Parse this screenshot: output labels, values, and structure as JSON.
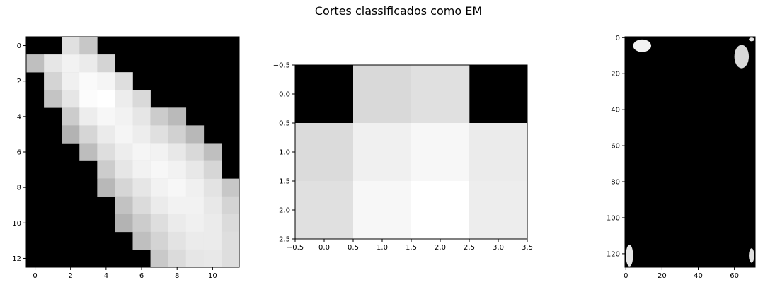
{
  "figure": {
    "title": "Cortes classificados como EM"
  },
  "chart_data": [
    {
      "type": "heatmap",
      "colormap": "gray",
      "shape": [
        13,
        12
      ],
      "xlim": [
        -0.5,
        11.5
      ],
      "ylim": [
        12.5,
        -0.5
      ],
      "xticks": [
        0,
        2,
        4,
        6,
        8,
        10
      ],
      "yticks": [
        0,
        2,
        4,
        6,
        8,
        10,
        12
      ],
      "values": [
        [
          0,
          0,
          0.88,
          0.78,
          0,
          0,
          0,
          0,
          0,
          0,
          0,
          0
        ],
        [
          0.75,
          0.9,
          0.95,
          0.92,
          0.83,
          0,
          0,
          0,
          0,
          0,
          0,
          0
        ],
        [
          0,
          0.83,
          0.94,
          0.98,
          0.96,
          0.87,
          0,
          0,
          0,
          0,
          0,
          0
        ],
        [
          0,
          0.77,
          0.9,
          0.99,
          1.0,
          0.93,
          0.85,
          0,
          0,
          0,
          0,
          0
        ],
        [
          0,
          0,
          0.8,
          0.93,
          0.97,
          0.95,
          0.9,
          0.8,
          0.73,
          0,
          0,
          0
        ],
        [
          0,
          0,
          0.7,
          0.84,
          0.92,
          0.96,
          0.93,
          0.88,
          0.82,
          0.72,
          0,
          0
        ],
        [
          0,
          0,
          0,
          0.74,
          0.87,
          0.93,
          0.96,
          0.95,
          0.91,
          0.85,
          0.75,
          0
        ],
        [
          0,
          0,
          0,
          0,
          0.8,
          0.9,
          0.95,
          0.97,
          0.95,
          0.91,
          0.84,
          0
        ],
        [
          0,
          0,
          0,
          0,
          0.72,
          0.84,
          0.9,
          0.95,
          0.97,
          0.94,
          0.89,
          0.78
        ],
        [
          0,
          0,
          0,
          0,
          0,
          0.76,
          0.86,
          0.92,
          0.95,
          0.95,
          0.91,
          0.83
        ],
        [
          0,
          0,
          0,
          0,
          0,
          0.7,
          0.8,
          0.87,
          0.92,
          0.94,
          0.92,
          0.86
        ],
        [
          0,
          0,
          0,
          0,
          0,
          0,
          0.75,
          0.83,
          0.89,
          0.92,
          0.92,
          0.87
        ],
        [
          0,
          0,
          0,
          0,
          0,
          0,
          0,
          0.79,
          0.86,
          0.9,
          0.91,
          0.87
        ]
      ]
    },
    {
      "type": "heatmap",
      "colormap": "gray",
      "shape": [
        3,
        4
      ],
      "xlim": [
        -0.5,
        3.5
      ],
      "ylim": [
        2.5,
        -0.5
      ],
      "xticks": [
        -0.5,
        0.0,
        0.5,
        1.0,
        1.5,
        2.0,
        2.5,
        3.0,
        3.5
      ],
      "yticks": [
        -0.5,
        0.0,
        0.5,
        1.0,
        1.5,
        2.0,
        2.5
      ],
      "values": [
        [
          0,
          0.85,
          0.88,
          0
        ],
        [
          0.86,
          0.94,
          0.97,
          0.92
        ],
        [
          0.88,
          0.97,
          1.0,
          0.93
        ]
      ]
    },
    {
      "type": "heatmap",
      "colormap": "gray",
      "shape": [
        128,
        72
      ],
      "xlim": [
        -0.5,
        71.5
      ],
      "ylim": [
        127.5,
        -0.5
      ],
      "xticks": [
        0,
        20,
        40,
        60
      ],
      "yticks": [
        0,
        20,
        40,
        60,
        80,
        100,
        120
      ],
      "blobs": [
        {
          "x": [
            4,
            14
          ],
          "y": [
            1,
            8
          ],
          "intensity": 0.95
        },
        {
          "x": [
            60,
            68
          ],
          "y": [
            4,
            17
          ],
          "intensity": 0.85
        },
        {
          "x": [
            68,
            71
          ],
          "y": [
            0,
            2
          ],
          "intensity": 0.9
        },
        {
          "x": [
            0,
            4
          ],
          "y": [
            115,
            127
          ],
          "intensity": 0.9
        },
        {
          "x": [
            68,
            71
          ],
          "y": [
            117,
            125
          ],
          "intensity": 0.88
        }
      ]
    }
  ]
}
